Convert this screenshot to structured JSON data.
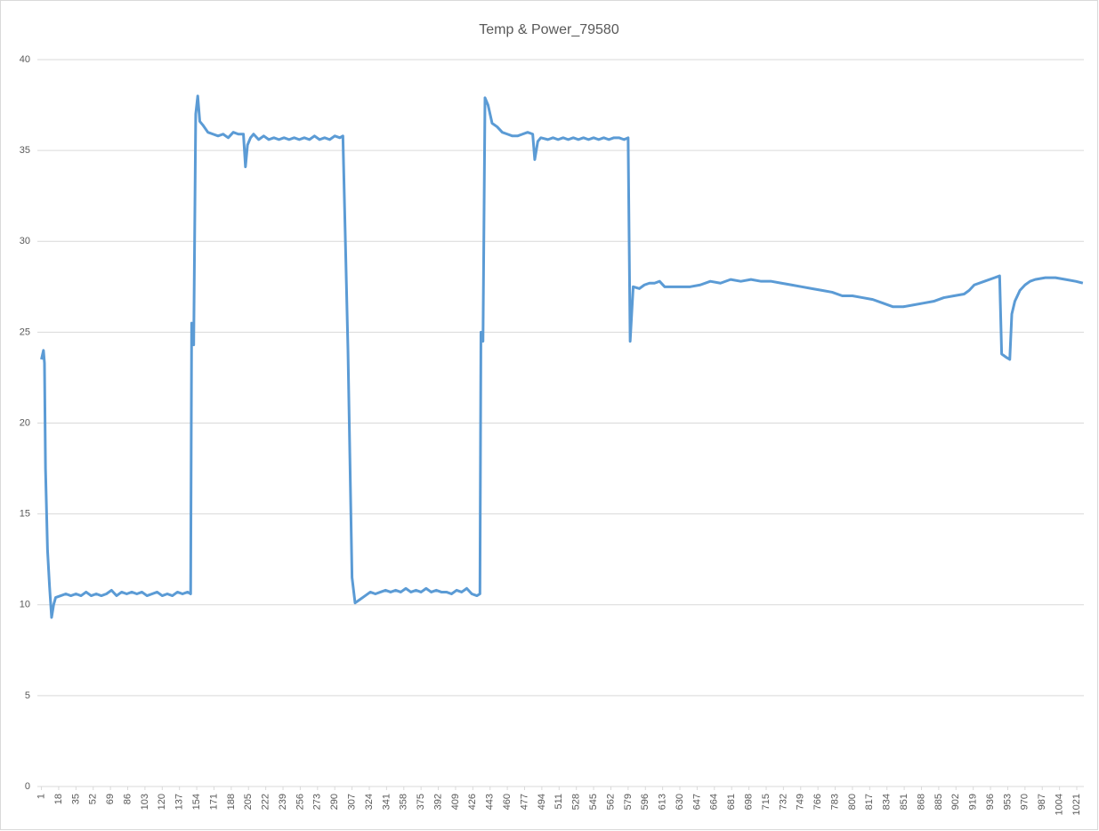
{
  "chart_data": {
    "type": "line",
    "title": "Temp & Power_79580",
    "x": [
      1,
      3,
      4,
      5,
      7,
      9,
      11,
      13,
      15,
      20,
      25,
      30,
      35,
      40,
      45,
      50,
      55,
      60,
      65,
      70,
      75,
      80,
      85,
      90,
      95,
      100,
      105,
      110,
      115,
      120,
      125,
      130,
      135,
      140,
      145,
      148,
      149,
      151,
      153,
      155,
      157,
      160,
      165,
      170,
      175,
      180,
      185,
      190,
      195,
      200,
      202,
      204,
      207,
      210,
      215,
      220,
      225,
      230,
      235,
      240,
      245,
      250,
      255,
      260,
      265,
      270,
      275,
      280,
      285,
      290,
      295,
      298,
      303,
      307,
      310,
      315,
      320,
      325,
      330,
      335,
      340,
      345,
      350,
      355,
      360,
      365,
      370,
      375,
      380,
      385,
      390,
      395,
      400,
      405,
      410,
      415,
      420,
      425,
      430,
      433,
      434,
      436,
      438,
      441,
      445,
      450,
      455,
      460,
      465,
      470,
      475,
      480,
      485,
      487,
      490,
      493,
      500,
      505,
      510,
      515,
      520,
      525,
      530,
      535,
      540,
      545,
      550,
      555,
      560,
      565,
      570,
      575,
      579,
      581,
      584,
      590,
      595,
      600,
      605,
      610,
      615,
      620,
      630,
      640,
      650,
      660,
      670,
      680,
      690,
      700,
      710,
      720,
      730,
      740,
      750,
      760,
      770,
      780,
      790,
      800,
      810,
      820,
      830,
      840,
      850,
      860,
      870,
      880,
      890,
      900,
      910,
      915,
      920,
      930,
      940,
      945,
      947,
      952,
      955,
      957,
      960,
      965,
      970,
      975,
      980,
      990,
      1000,
      1010,
      1020,
      1027
    ],
    "series": [
      {
        "name": "Temp",
        "color": "#5b9bd5",
        "values": [
          23.5,
          24.0,
          23.3,
          17.5,
          13,
          11,
          9.3,
          10.0,
          10.4,
          10.5,
          10.6,
          10.5,
          10.6,
          10.5,
          10.7,
          10.5,
          10.6,
          10.5,
          10.6,
          10.8,
          10.5,
          10.7,
          10.6,
          10.7,
          10.6,
          10.7,
          10.5,
          10.6,
          10.7,
          10.5,
          10.6,
          10.5,
          10.7,
          10.6,
          10.7,
          10.6,
          25.5,
          24.3,
          37,
          38,
          36.6,
          36.4,
          36,
          35.9,
          35.8,
          35.9,
          35.7,
          36,
          35.9,
          35.9,
          34.1,
          35.3,
          35.7,
          35.9,
          35.6,
          35.8,
          35.6,
          35.7,
          35.6,
          35.7,
          35.6,
          35.7,
          35.6,
          35.7,
          35.6,
          35.8,
          35.6,
          35.7,
          35.6,
          35.8,
          35.7,
          35.8,
          24,
          11.5,
          10.1,
          10.3,
          10.5,
          10.7,
          10.6,
          10.7,
          10.8,
          10.7,
          10.8,
          10.7,
          10.9,
          10.7,
          10.8,
          10.7,
          10.9,
          10.7,
          10.8,
          10.7,
          10.7,
          10.6,
          10.8,
          10.7,
          10.9,
          10.6,
          10.5,
          10.6,
          25,
          24.5,
          37.9,
          37.5,
          36.5,
          36.3,
          36,
          35.9,
          35.8,
          35.8,
          35.9,
          36,
          35.9,
          34.5,
          35.5,
          35.7,
          35.6,
          35.7,
          35.6,
          35.7,
          35.6,
          35.7,
          35.6,
          35.7,
          35.6,
          35.7,
          35.6,
          35.7,
          35.6,
          35.7,
          35.7,
          35.6,
          35.7,
          24.5,
          27.5,
          27.4,
          27.6,
          27.7,
          27.7,
          27.8,
          27.5,
          27.5,
          27.5,
          27.5,
          27.6,
          27.8,
          27.7,
          27.9,
          27.8,
          27.9,
          27.8,
          27.8,
          27.7,
          27.6,
          27.5,
          27.4,
          27.3,
          27.2,
          27.0,
          27.0,
          26.9,
          26.8,
          26.6,
          26.4,
          26.4,
          26.5,
          26.6,
          26.7,
          26.9,
          27.0,
          27.1,
          27.3,
          27.6,
          27.8,
          28.0,
          28.1,
          23.8,
          23.6,
          23.5,
          26,
          26.7,
          27.3,
          27.6,
          27.8,
          27.9,
          28.0,
          28.0,
          27.9,
          27.8,
          27.7
        ]
      }
    ],
    "xlim": [
      -3,
      1028
    ],
    "xticks": [
      1,
      18,
      35,
      52,
      69,
      86,
      103,
      120,
      137,
      154,
      171,
      188,
      205,
      222,
      239,
      256,
      273,
      290,
      307,
      324,
      341,
      358,
      375,
      392,
      409,
      426,
      443,
      460,
      477,
      494,
      511,
      528,
      545,
      562,
      579,
      596,
      613,
      630,
      647,
      664,
      681,
      698,
      715,
      732,
      749,
      766,
      783,
      800,
      817,
      834,
      851,
      868,
      885,
      902,
      919,
      936,
      953,
      970,
      987,
      1004,
      1021
    ],
    "ylim": [
      0,
      40
    ],
    "yticks": [
      0,
      5,
      10,
      15,
      20,
      25,
      30,
      35,
      40
    ],
    "grid": true
  }
}
